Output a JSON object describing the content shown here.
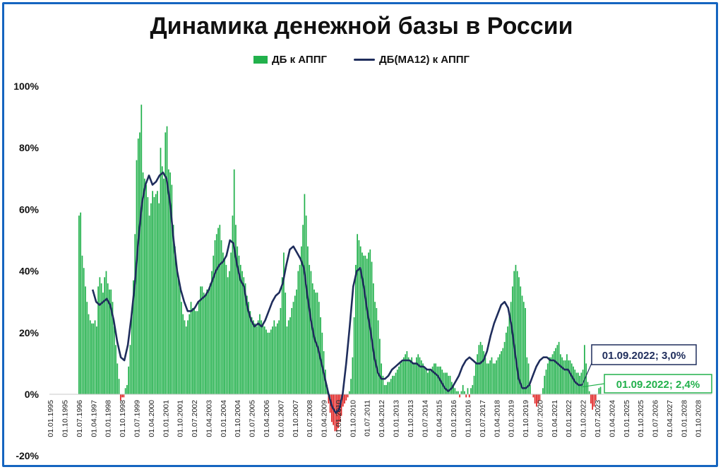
{
  "chart_data": {
    "type": "bar",
    "title": "Динамика денежной базы в России",
    "ylim": [
      -20,
      100
    ],
    "ytick_labels": [
      "100%",
      "80%",
      "60%",
      "40%",
      "20%",
      "0%",
      "-20%"
    ],
    "yticks": [
      100,
      80,
      60,
      40,
      20,
      0,
      -20
    ],
    "x_tick_labels": [
      "01.01.1995",
      "01.10.1995",
      "01.07.1996",
      "01.04.1997",
      "01.01.1998",
      "01.10.1998",
      "01.07.1999",
      "01.04.2000",
      "01.01.2001",
      "01.10.2001",
      "01.07.2002",
      "01.04.2003",
      "01.01.2004",
      "01.10.2004",
      "01.07.2005",
      "01.04.2006",
      "01.01.2007",
      "01.10.2007",
      "01.07.2008",
      "01.04.2009",
      "01.01.2010",
      "01.10.2010",
      "01.07.2011",
      "01.04.2012",
      "01.01.2013",
      "01.10.2013",
      "01.07.2014",
      "01.04.2015",
      "01.01.2016",
      "01.10.2016",
      "01.07.2017",
      "01.04.2018",
      "01.01.2019",
      "01.10.2019",
      "01.07.2020",
      "01.04.2021",
      "01.01.2022",
      "01.10.2022",
      "01.07.2023",
      "01.04.2024",
      "01.01.2025",
      "01.10.2025",
      "01.07.2026",
      "01.04.2027",
      "01.01.2028",
      "01.10.2028"
    ],
    "x_start": "1995-01-01",
    "legend": {
      "bars": "ДБ к АППГ",
      "line": "ДБ(МА12) к АППГ"
    },
    "series": [
      {
        "name": "ДБ к АППГ",
        "kind": "bar",
        "positive_color": "#22b14c",
        "negative_color": "#e02020",
        "values": [
          58,
          59,
          45,
          41,
          35,
          30,
          26,
          24,
          23,
          23,
          24,
          22,
          35,
          38,
          36,
          33,
          38,
          40,
          36,
          34,
          34,
          30,
          22,
          16,
          10,
          5,
          -2,
          -1,
          -1,
          2,
          3,
          9,
          16,
          26,
          37,
          52,
          76,
          83,
          85,
          94,
          72,
          70,
          68,
          64,
          58,
          62,
          66,
          64,
          65,
          66,
          62,
          80,
          74,
          70,
          85,
          87,
          73,
          72,
          68,
          55,
          48,
          42,
          38,
          35,
          30,
          26,
          24,
          22,
          24,
          26,
          30,
          28,
          28,
          27,
          27,
          30,
          35,
          35,
          33,
          32,
          34,
          34,
          36,
          40,
          45,
          50,
          52,
          54,
          55,
          50,
          46,
          44,
          42,
          38,
          40,
          46,
          58,
          73,
          55,
          48,
          45,
          42,
          40,
          38,
          36,
          32,
          30,
          27,
          25,
          24,
          23,
          22,
          24,
          26,
          24,
          23,
          22,
          21,
          20,
          20,
          21,
          22,
          24,
          22,
          23,
          24,
          28,
          38,
          46,
          33,
          22,
          24,
          25,
          28,
          30,
          32,
          34,
          40,
          42,
          48,
          55,
          65,
          58,
          48,
          42,
          40,
          36,
          34,
          33,
          33,
          30,
          25,
          20,
          14,
          8,
          3,
          -3,
          -6,
          -9,
          -10,
          -12,
          -12,
          -11,
          -9,
          -7,
          -4,
          -3,
          -2,
          -1,
          1,
          5,
          12,
          25,
          42,
          52,
          50,
          48,
          46,
          45,
          45,
          44,
          46,
          47,
          43,
          36,
          30,
          28,
          24,
          18,
          10,
          6,
          3,
          3,
          4,
          4,
          5,
          6,
          6,
          7,
          8,
          9,
          10,
          11,
          12,
          13,
          14,
          12,
          11,
          12,
          10,
          10,
          12,
          13,
          12,
          11,
          10,
          9,
          8,
          7,
          8,
          8,
          9,
          10,
          10,
          9,
          9,
          9,
          8,
          7,
          7,
          7,
          6,
          6,
          4,
          3,
          2,
          1,
          1,
          -1,
          1,
          3,
          1,
          -1,
          2,
          -1,
          2,
          3,
          6,
          10,
          13,
          16,
          17,
          16,
          14,
          12,
          10,
          10,
          11,
          12,
          10,
          10,
          11,
          12,
          13,
          14,
          15,
          17,
          20,
          22,
          26,
          30,
          35,
          40,
          42,
          40,
          38,
          35,
          32,
          30,
          28,
          12,
          10,
          3,
          0,
          -1,
          -3,
          -4,
          -3,
          -2,
          0,
          2,
          6,
          8,
          10,
          12,
          12,
          13,
          14,
          15,
          16,
          17,
          13,
          12,
          11,
          11,
          13,
          11,
          11,
          10,
          9,
          8,
          7,
          7,
          6,
          7,
          8,
          16,
          10,
          4,
          1,
          -3,
          -5,
          -4,
          -2,
          0,
          2,
          2.4
        ]
      },
      {
        "name": "ДБ(МА12) к АППГ",
        "kind": "line",
        "color": "#1f2d5c",
        "points": [
          [
            28,
            34
          ],
          [
            31,
            30
          ],
          [
            34,
            29
          ],
          [
            37,
            30
          ],
          [
            40,
            31
          ],
          [
            43,
            29
          ],
          [
            46,
            24
          ],
          [
            49,
            17
          ],
          [
            52,
            12
          ],
          [
            55,
            11
          ],
          [
            58,
            16
          ],
          [
            61,
            25
          ],
          [
            64,
            36
          ],
          [
            67,
            50
          ],
          [
            70,
            62
          ],
          [
            73,
            68
          ],
          [
            76,
            71
          ],
          [
            79,
            68
          ],
          [
            82,
            69
          ],
          [
            85,
            71
          ],
          [
            88,
            72
          ],
          [
            91,
            70
          ],
          [
            94,
            62
          ],
          [
            97,
            50
          ],
          [
            100,
            40
          ],
          [
            103,
            34
          ],
          [
            106,
            30
          ],
          [
            109,
            27
          ],
          [
            112,
            27
          ],
          [
            115,
            28
          ],
          [
            118,
            30
          ],
          [
            121,
            31
          ],
          [
            124,
            32
          ],
          [
            127,
            34
          ],
          [
            130,
            37
          ],
          [
            133,
            40
          ],
          [
            136,
            42
          ],
          [
            139,
            43
          ],
          [
            142,
            45
          ],
          [
            145,
            50
          ],
          [
            148,
            49
          ],
          [
            151,
            42
          ],
          [
            154,
            37
          ],
          [
            157,
            35
          ],
          [
            160,
            28
          ],
          [
            163,
            24
          ],
          [
            166,
            22
          ],
          [
            169,
            23
          ],
          [
            172,
            22
          ],
          [
            175,
            24
          ],
          [
            178,
            27
          ],
          [
            181,
            30
          ],
          [
            184,
            32
          ],
          [
            187,
            33
          ],
          [
            190,
            36
          ],
          [
            193,
            42
          ],
          [
            196,
            47
          ],
          [
            199,
            48
          ],
          [
            202,
            46
          ],
          [
            205,
            44
          ],
          [
            208,
            41
          ],
          [
            211,
            32
          ],
          [
            214,
            24
          ],
          [
            217,
            18
          ],
          [
            220,
            15
          ],
          [
            223,
            10
          ],
          [
            226,
            5
          ],
          [
            229,
            0
          ],
          [
            232,
            -4
          ],
          [
            235,
            -6
          ],
          [
            238,
            -5
          ],
          [
            241,
            0
          ],
          [
            244,
            10
          ],
          [
            247,
            22
          ],
          [
            250,
            35
          ],
          [
            253,
            40
          ],
          [
            256,
            41
          ],
          [
            259,
            35
          ],
          [
            262,
            27
          ],
          [
            265,
            20
          ],
          [
            268,
            12
          ],
          [
            271,
            7
          ],
          [
            274,
            5
          ],
          [
            277,
            5
          ],
          [
            280,
            6
          ],
          [
            283,
            8
          ],
          [
            286,
            9
          ],
          [
            289,
            10
          ],
          [
            292,
            11
          ],
          [
            295,
            11
          ],
          [
            298,
            11
          ],
          [
            301,
            10
          ],
          [
            304,
            10
          ],
          [
            307,
            9
          ],
          [
            310,
            9
          ],
          [
            313,
            8
          ],
          [
            316,
            8
          ],
          [
            319,
            7
          ],
          [
            322,
            6
          ],
          [
            325,
            4
          ],
          [
            328,
            2
          ],
          [
            331,
            1
          ],
          [
            334,
            2
          ],
          [
            337,
            4
          ],
          [
            340,
            6
          ],
          [
            343,
            9
          ],
          [
            346,
            11
          ],
          [
            349,
            12
          ],
          [
            352,
            11
          ],
          [
            355,
            10
          ],
          [
            358,
            10
          ],
          [
            361,
            11
          ],
          [
            364,
            14
          ],
          [
            367,
            19
          ],
          [
            370,
            23
          ],
          [
            373,
            26
          ],
          [
            376,
            29
          ],
          [
            379,
            30
          ],
          [
            382,
            28
          ],
          [
            385,
            22
          ],
          [
            388,
            13
          ],
          [
            391,
            5
          ],
          [
            394,
            2
          ],
          [
            397,
            2
          ],
          [
            400,
            3
          ],
          [
            403,
            6
          ],
          [
            406,
            9
          ],
          [
            409,
            11
          ],
          [
            412,
            12
          ],
          [
            415,
            12
          ],
          [
            418,
            11
          ],
          [
            421,
            11
          ],
          [
            424,
            10
          ],
          [
            427,
            9
          ],
          [
            430,
            8
          ],
          [
            433,
            8
          ],
          [
            436,
            6
          ],
          [
            439,
            4
          ],
          [
            442,
            3
          ],
          [
            445,
            3
          ]
        ]
      }
    ],
    "annotations": [
      {
        "text": "01.09.2022; 3,0%",
        "color": "#1f2d5c"
      },
      {
        "text": "01.09.2022; 2,4%",
        "color": "#22b14c"
      }
    ],
    "grid": false
  }
}
